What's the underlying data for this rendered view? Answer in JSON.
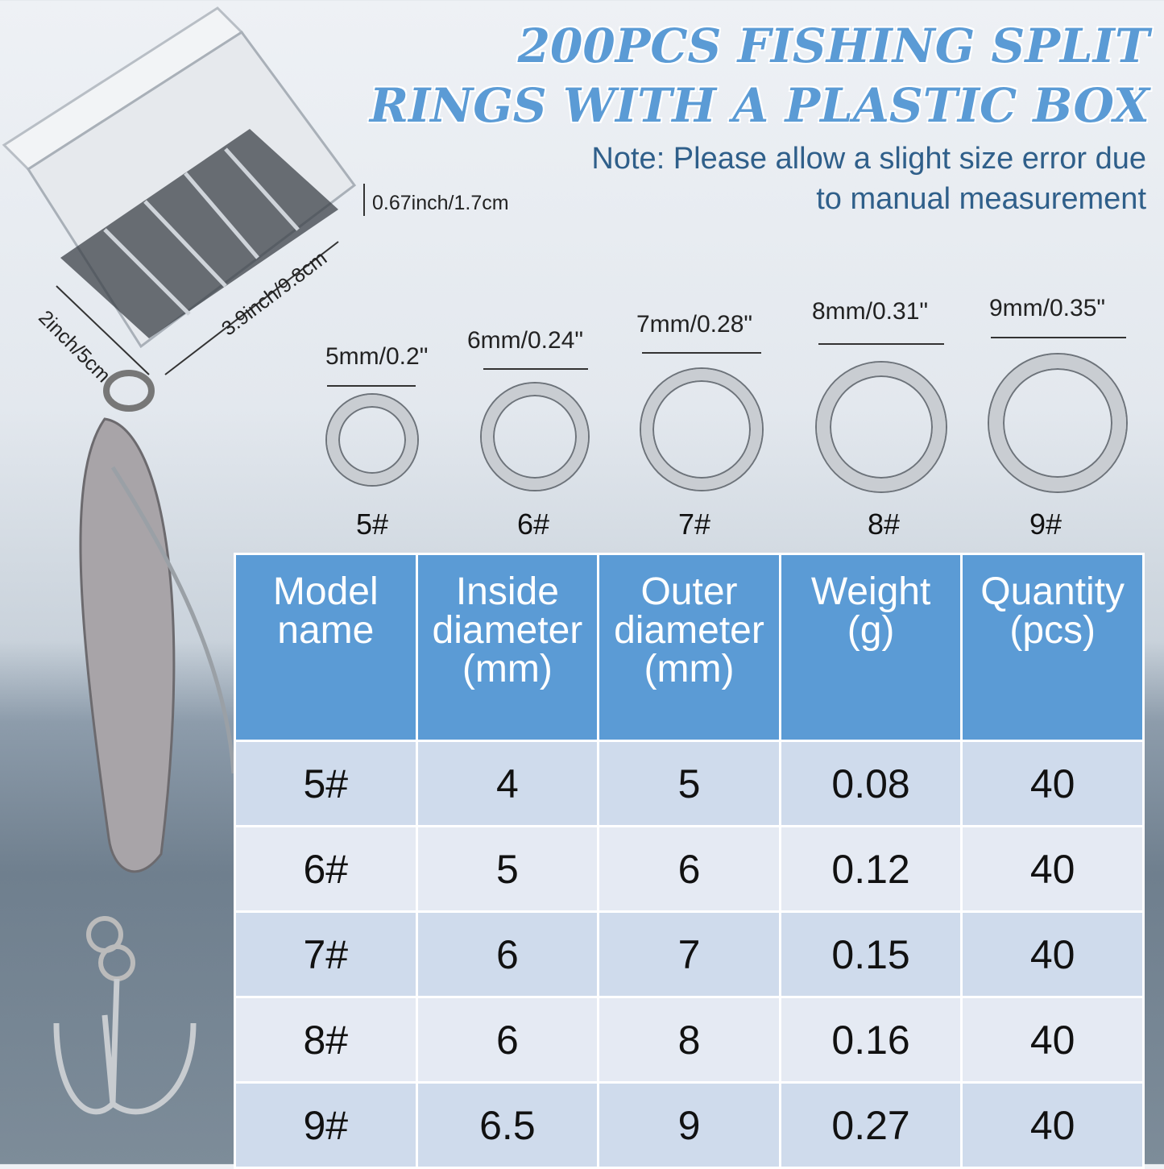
{
  "title": {
    "line1": "200PCS FISHING SPLIT",
    "line2": "RINGS WITH A PLASTIC BOX"
  },
  "note": {
    "line1": "Note: Please allow a slight size error due",
    "line2": "to manual measurement"
  },
  "box_dimensions": {
    "height": "0.67inch/1.7cm",
    "length": "3.9inch/9.8cm",
    "width": "2inch/5cm"
  },
  "rings": [
    {
      "size": "5mm/0.2\"",
      "label": "5#"
    },
    {
      "size": "6mm/0.24\"",
      "label": "6#"
    },
    {
      "size": "7mm/0.28\"",
      "label": "7#"
    },
    {
      "size": "8mm/0.31\"",
      "label": "8#"
    },
    {
      "size": "9mm/0.35\"",
      "label": "9#"
    }
  ],
  "table": {
    "headers": [
      [
        "Model",
        "name"
      ],
      [
        "Inside",
        "diameter",
        "(mm)"
      ],
      [
        "Outer",
        "diameter",
        "(mm)"
      ],
      [
        "Weight",
        "(g)"
      ],
      [
        "Quantity",
        "(pcs)"
      ]
    ],
    "rows": [
      [
        "5#",
        "4",
        "5",
        "0.08",
        "40"
      ],
      [
        "6#",
        "5",
        "6",
        "0.12",
        "40"
      ],
      [
        "7#",
        "6",
        "7",
        "0.15",
        "40"
      ],
      [
        "8#",
        "6",
        "8",
        "0.16",
        "40"
      ],
      [
        "9#",
        "6.5",
        "9",
        "0.27",
        "40"
      ]
    ]
  },
  "colors": {
    "accent": "#5b9bd5",
    "note": "#2f5f8a",
    "row_dark": "#cfdbec",
    "row_light": "#e5eaf3"
  }
}
